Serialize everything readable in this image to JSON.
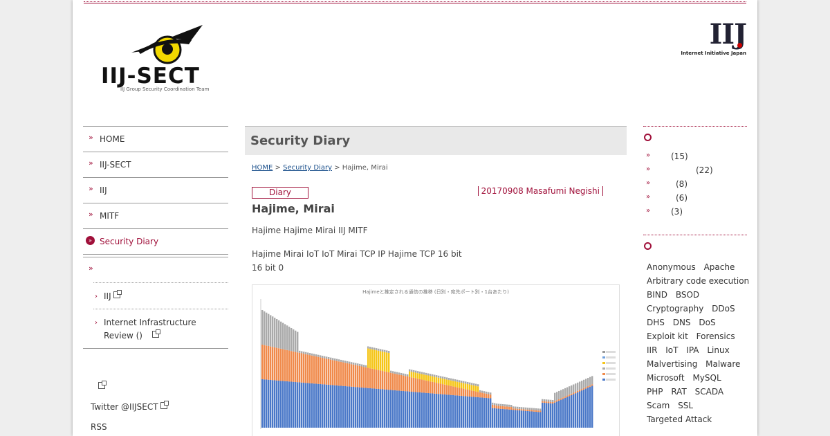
{
  "header": {
    "sect_logo_text": "IIJ-SECT",
    "sect_logo_sub": "IIJ Group Security Coordination Team",
    "iij_logo_text": "IIJ",
    "iij_logo_sub": "Internet Initiative Japan"
  },
  "nav": {
    "items": [
      {
        "label": "HOME"
      },
      {
        "label": "IIJ-SECT"
      },
      {
        "label": "IIJ"
      },
      {
        "label": "MITF"
      },
      {
        "label": "Security Diary"
      }
    ],
    "sub": [
      {
        "label": "IIJ"
      },
      {
        "label": "Internet Infrastructure Review ()"
      }
    ],
    "misc": [
      {
        "label": ""
      },
      {
        "label": "Twitter @IIJSECT"
      },
      {
        "label": "RSS"
      }
    ]
  },
  "main": {
    "heading": "Security Diary",
    "breadcrumb": {
      "home": "HOME",
      "sep1": ">",
      "diary": "Security Diary",
      "sep2": ">",
      "current": "Hajime, Mirai"
    },
    "category_badge": "Diary",
    "byline": "20170908 Masafumi Negishi",
    "title": "Hajime, Mirai",
    "paragraph1": "Hajime  Hajime  Mirai IIJ  MITF",
    "paragraph2": "Hajime  Mirai  IoT  IoT Mirai  TCP  IP  Hajime TCP  16 bit  16 bit  0",
    "chart_title": "Hajimeと推定される通信の推移 (日別・宛先ポート別・1台あたり)"
  },
  "sidebar": {
    "categories": [
      {
        "count": "(15)"
      },
      {
        "count": "(22)"
      },
      {
        "count": "(8)"
      },
      {
        "count": "(6)"
      },
      {
        "count": "(3)"
      }
    ],
    "tags": [
      "Anonymous",
      "Apache",
      "Arbitrary code execution",
      "BIND",
      "BSOD",
      "Cryptography",
      "DDoS",
      "DHS",
      "DNS",
      "DoS",
      "Exploit kit",
      "Forensics",
      "IIR",
      "IoT",
      "IPA",
      "Linux",
      "Malvertising",
      "Malware",
      "Microsoft",
      "MySQL",
      "PHP",
      "RAT",
      "SCADA",
      "Scam",
      "SSL",
      "Targeted Attack"
    ]
  },
  "colors": {
    "accent": "#a0103a",
    "link": "#1a4f8b"
  }
}
